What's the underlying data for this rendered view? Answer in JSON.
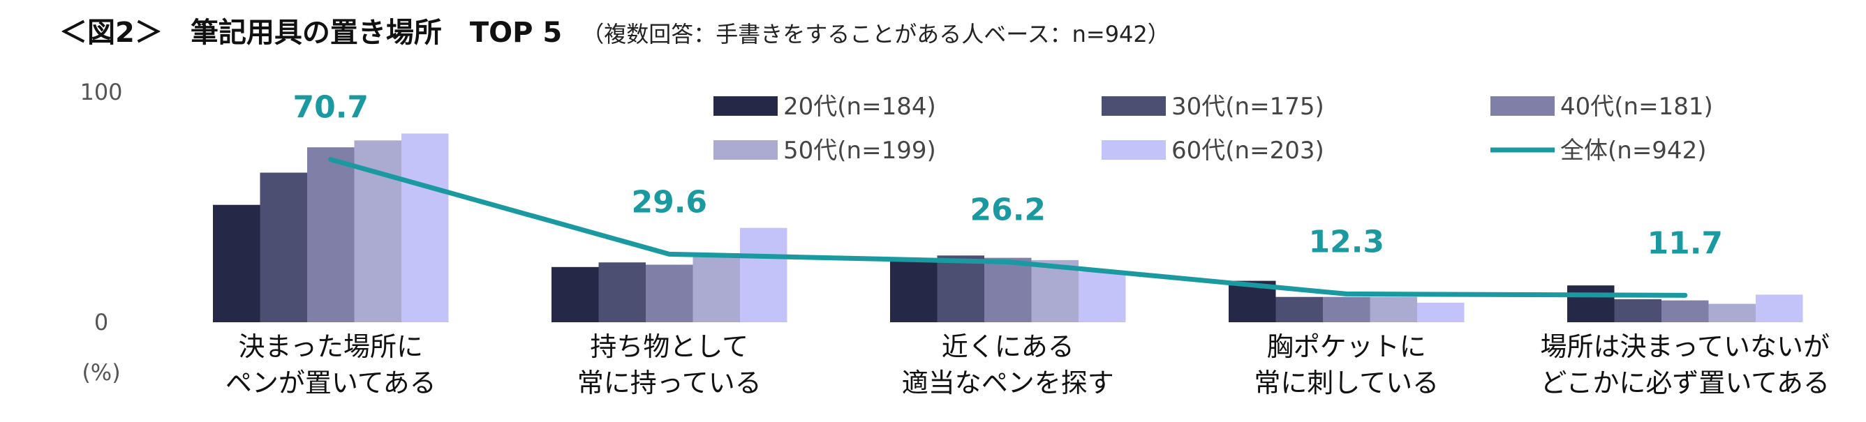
{
  "header": {
    "title": "＜図2＞　筆記用具の置き場所　TOP 5",
    "note": "（複数回答：手書きをすることがある人ベース：n=942）"
  },
  "chart_data": {
    "type": "bar",
    "title": "＜図2＞　筆記用具の置き場所　TOP 5",
    "subtitle": "（複数回答：手書きをすることがある人ベース：n=942）",
    "unit_label": "(%)",
    "ylim": [
      0,
      100
    ],
    "yticks": [
      0,
      100
    ],
    "grid": false,
    "legend_position": "top-right",
    "categories": [
      [
        "決まった場所に",
        "ペンが置いてある"
      ],
      [
        "持ち物として",
        "常に持っている"
      ],
      [
        "近くにある",
        "適当なペンを探す"
      ],
      [
        "胸ポケットに",
        "常に刺している"
      ],
      [
        "場所は決まっていないが",
        "どこかに必ず置いてある"
      ]
    ],
    "series": [
      {
        "name": "20代(n=184)",
        "type": "bar",
        "color": "#262848",
        "values": [
          51,
          24,
          27,
          18,
          16
        ]
      },
      {
        "name": "30代(n=175)",
        "type": "bar",
        "color": "#4c4e72",
        "values": [
          65,
          26,
          29,
          11,
          10
        ]
      },
      {
        "name": "40代(n=181)",
        "type": "bar",
        "color": "#7f7fa7",
        "values": [
          76,
          25,
          28,
          11,
          9.5
        ]
      },
      {
        "name": "50代(n=199)",
        "type": "bar",
        "color": "#ababd1",
        "values": [
          79,
          30,
          27,
          11,
          8
        ]
      },
      {
        "name": "60代(n=203)",
        "type": "bar",
        "color": "#c3c3fa",
        "values": [
          82,
          41,
          22,
          8.5,
          12
        ]
      },
      {
        "name": "全体(n=942)",
        "type": "line",
        "color": "#1a9aa0",
        "values": [
          70.7,
          29.6,
          26.2,
          12.3,
          11.7
        ],
        "labels": [
          "70.7",
          "29.6",
          "26.2",
          "12.3",
          "11.7"
        ]
      }
    ]
  }
}
